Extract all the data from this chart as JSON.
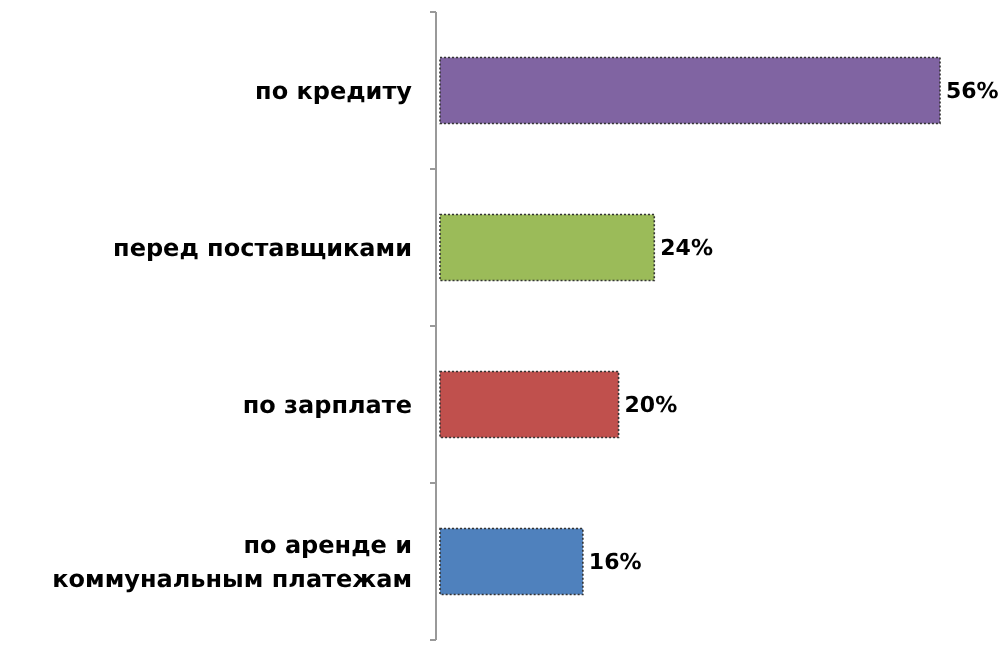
{
  "chart_data": {
    "type": "bar",
    "orientation": "horizontal",
    "categories": [
      "по кредиту",
      "перед поставщиками",
      "по зарплате",
      "по аренде и коммунальным платежам"
    ],
    "values": [
      56,
      24,
      20,
      16
    ],
    "colors": [
      "#8064a2",
      "#9bbb59",
      "#c0504d",
      "#4f81bd"
    ],
    "value_labels": [
      "56%",
      "24%",
      "20%",
      "16%"
    ]
  }
}
